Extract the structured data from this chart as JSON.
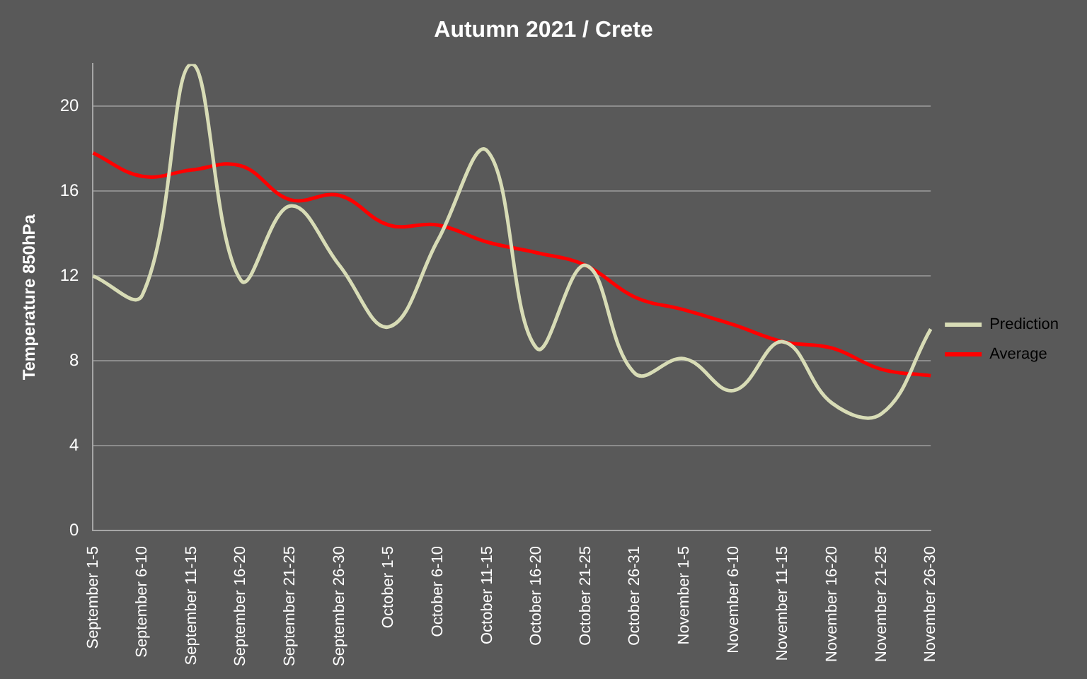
{
  "chart_data": {
    "type": "line",
    "title": "Autumn 2021 / Crete",
    "ylabel": "Temperature 850hPa",
    "categories": [
      "September 1-5",
      "September 6-10",
      "September 11-15",
      "September 16-20",
      "September 21-25",
      "September 26-30",
      "October 1-5",
      "October 6-10",
      "October 11-15",
      "October 16-20",
      "October 21-25",
      "October 26-31",
      "November 1-5",
      "November 6-10",
      "November 11-15",
      "November 16-20",
      "November 21-25",
      "November 26-30"
    ],
    "series": [
      {
        "name": "Prediction",
        "color": "#d8dcb6",
        "values": [
          12.0,
          11.1,
          22.0,
          11.8,
          15.3,
          12.5,
          9.6,
          13.7,
          17.9,
          8.6,
          12.5,
          7.4,
          8.1,
          6.6,
          8.9,
          6.0,
          5.5,
          9.5
        ]
      },
      {
        "name": "Average",
        "color": "#ff0000",
        "values": [
          17.8,
          16.7,
          17.0,
          17.2,
          15.6,
          15.8,
          14.4,
          14.4,
          13.6,
          13.1,
          12.5,
          11.0,
          10.4,
          9.7,
          8.9,
          8.6,
          7.6,
          7.3
        ]
      }
    ],
    "ylim": [
      0,
      22
    ],
    "yticks": [
      0,
      4,
      8,
      12,
      16,
      20
    ],
    "grid": "y",
    "legend": "right",
    "marker": "none",
    "line_style": "solid"
  }
}
